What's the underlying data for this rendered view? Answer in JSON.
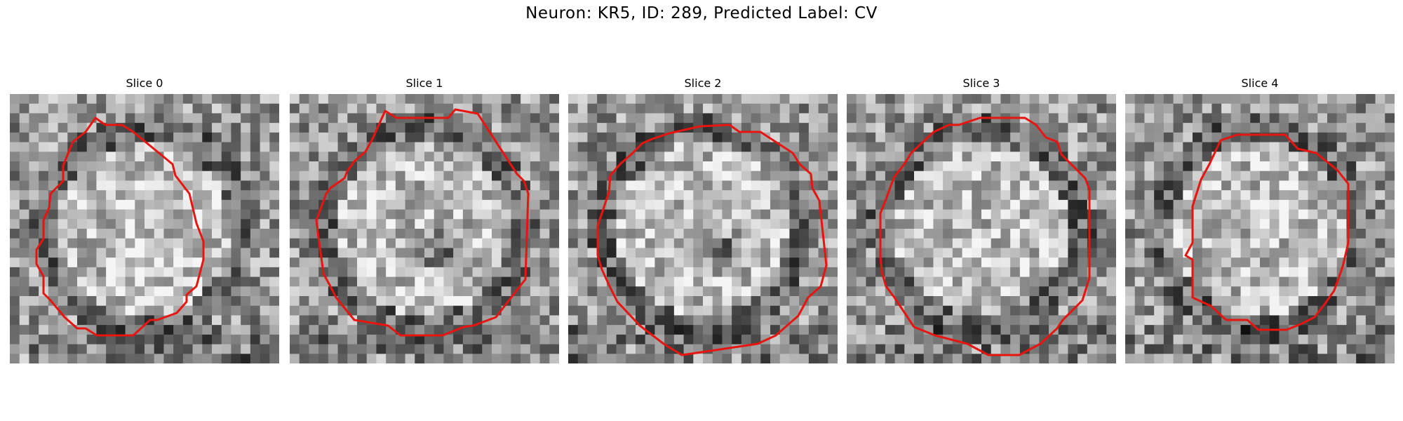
{
  "figure": {
    "title": "Neuron: KR5, ID: 289, Predicted Label: CV"
  },
  "panels": [
    {
      "title": "Slice 0",
      "seed": 11,
      "dark_spot": false,
      "contour": [
        [
          122,
          34
        ],
        [
          136,
          44
        ],
        [
          160,
          44
        ],
        [
          176,
          54
        ],
        [
          232,
          100
        ],
        [
          236,
          116
        ],
        [
          256,
          142
        ],
        [
          266,
          184
        ],
        [
          276,
          210
        ],
        [
          276,
          236
        ],
        [
          266,
          274
        ],
        [
          252,
          286
        ],
        [
          252,
          296
        ],
        [
          238,
          312
        ],
        [
          210,
          322
        ],
        [
          200,
          322
        ],
        [
          176,
          344
        ],
        [
          124,
          344
        ],
        [
          108,
          334
        ],
        [
          96,
          334
        ],
        [
          78,
          318
        ],
        [
          58,
          294
        ],
        [
          48,
          284
        ],
        [
          48,
          260
        ],
        [
          38,
          242
        ],
        [
          38,
          222
        ],
        [
          48,
          206
        ],
        [
          48,
          180
        ],
        [
          56,
          162
        ],
        [
          58,
          142
        ],
        [
          76,
          124
        ],
        [
          76,
          102
        ],
        [
          90,
          68
        ],
        [
          108,
          54
        ]
      ]
    },
    {
      "title": "Slice 1",
      "seed": 23,
      "dark_spot": true,
      "contour": [
        [
          136,
          24
        ],
        [
          152,
          34
        ],
        [
          226,
          34
        ],
        [
          236,
          22
        ],
        [
          268,
          28
        ],
        [
          324,
          114
        ],
        [
          334,
          124
        ],
        [
          340,
          142
        ],
        [
          336,
          264
        ],
        [
          294,
          318
        ],
        [
          262,
          330
        ],
        [
          248,
          332
        ],
        [
          218,
          344
        ],
        [
          158,
          344
        ],
        [
          140,
          330
        ],
        [
          92,
          322
        ],
        [
          66,
          290
        ],
        [
          58,
          274
        ],
        [
          48,
          256
        ],
        [
          46,
          240
        ],
        [
          42,
          212
        ],
        [
          38,
          180
        ],
        [
          52,
          142
        ],
        [
          58,
          134
        ],
        [
          78,
          120
        ],
        [
          82,
          110
        ],
        [
          92,
          96
        ],
        [
          108,
          82
        ],
        [
          118,
          64
        ]
      ]
    },
    {
      "title": "Slice 2",
      "seed": 37,
      "dark_spot": true,
      "contour": [
        [
          144,
          56
        ],
        [
          188,
          46
        ],
        [
          230,
          44
        ],
        [
          244,
          54
        ],
        [
          274,
          54
        ],
        [
          320,
          84
        ],
        [
          330,
          100
        ],
        [
          346,
          114
        ],
        [
          348,
          134
        ],
        [
          358,
          152
        ],
        [
          368,
          244
        ],
        [
          360,
          274
        ],
        [
          342,
          290
        ],
        [
          328,
          316
        ],
        [
          296,
          344
        ],
        [
          270,
          356
        ],
        [
          162,
          372
        ],
        [
          136,
          356
        ],
        [
          102,
          330
        ],
        [
          70,
          296
        ],
        [
          58,
          272
        ],
        [
          48,
          250
        ],
        [
          42,
          230
        ],
        [
          42,
          188
        ],
        [
          50,
          164
        ],
        [
          58,
          140
        ],
        [
          60,
          116
        ],
        [
          74,
          100
        ],
        [
          92,
          84
        ],
        [
          106,
          70
        ],
        [
          120,
          64
        ]
      ]
    },
    {
      "title": "Slice 3",
      "seed": 53,
      "dark_spot": false,
      "contour": [
        [
          124,
          54
        ],
        [
          146,
          44
        ],
        [
          160,
          44
        ],
        [
          190,
          34
        ],
        [
          254,
          34
        ],
        [
          270,
          44
        ],
        [
          284,
          62
        ],
        [
          300,
          68
        ],
        [
          306,
          86
        ],
        [
          340,
          120
        ],
        [
          346,
          136
        ],
        [
          346,
          262
        ],
        [
          336,
          294
        ],
        [
          308,
          322
        ],
        [
          300,
          334
        ],
        [
          276,
          356
        ],
        [
          246,
          372
        ],
        [
          202,
          372
        ],
        [
          172,
          356
        ],
        [
          126,
          344
        ],
        [
          96,
          332
        ],
        [
          68,
          290
        ],
        [
          56,
          274
        ],
        [
          50,
          254
        ],
        [
          48,
          230
        ],
        [
          48,
          170
        ],
        [
          56,
          150
        ],
        [
          64,
          128
        ],
        [
          68,
          118
        ],
        [
          82,
          100
        ],
        [
          92,
          84
        ]
      ]
    },
    {
      "title": "Slice 4",
      "seed": 71,
      "dark_spot": false,
      "contour": [
        [
          136,
          66
        ],
        [
          160,
          58
        ],
        [
          228,
          58
        ],
        [
          246,
          78
        ],
        [
          272,
          84
        ],
        [
          302,
          108
        ],
        [
          318,
          128
        ],
        [
          318,
          212
        ],
        [
          310,
          246
        ],
        [
          298,
          280
        ],
        [
          284,
          300
        ],
        [
          270,
          318
        ],
        [
          250,
          328
        ],
        [
          230,
          336
        ],
        [
          190,
          336
        ],
        [
          174,
          322
        ],
        [
          144,
          322
        ],
        [
          122,
          302
        ],
        [
          96,
          290
        ],
        [
          96,
          236
        ],
        [
          86,
          230
        ],
        [
          96,
          212
        ],
        [
          96,
          160
        ],
        [
          108,
          122
        ],
        [
          120,
          100
        ]
      ]
    }
  ]
}
